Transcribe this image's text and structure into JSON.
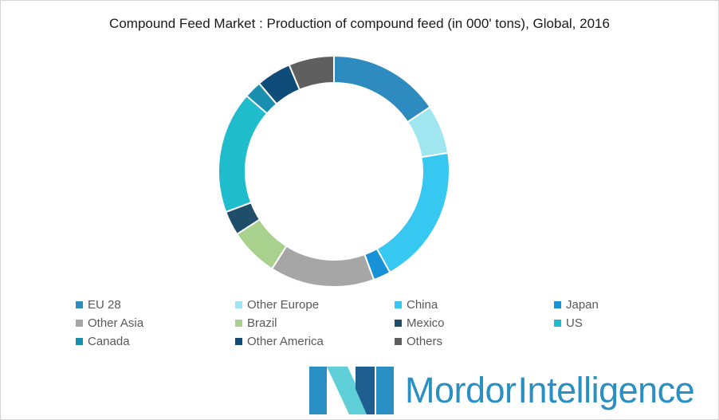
{
  "chart_data": {
    "type": "pie",
    "title": "Compound Feed Market : Production of compound feed (in 000' tons), Global, 2016",
    "donut": true,
    "legend_position": "bottom",
    "series": [
      {
        "name": "EU 28",
        "value": 16.0,
        "color": "#2e8bc0"
      },
      {
        "name": "Other Europe",
        "value": 7.0,
        "color": "#9fe6f0"
      },
      {
        "name": "China",
        "value": 20.0,
        "color": "#36c8f0"
      },
      {
        "name": "Japan",
        "value": 2.5,
        "color": "#1792d6"
      },
      {
        "name": "Other Asia",
        "value": 15.0,
        "color": "#a6a6a6"
      },
      {
        "name": "Brazil",
        "value": 7.0,
        "color": "#a9d18e"
      },
      {
        "name": "Mexico",
        "value": 3.5,
        "color": "#1f4e6b"
      },
      {
        "name": "US",
        "value": 17.5,
        "color": "#1fbdcc"
      },
      {
        "name": "Canada",
        "value": 2.5,
        "color": "#1a8fb0"
      },
      {
        "name": "Other America",
        "value": 5.0,
        "color": "#0f4c7a"
      },
      {
        "name": "Others",
        "value": 6.5,
        "color": "#5f5f5f"
      }
    ]
  },
  "logo": {
    "word1": "Mordor",
    "word2": "Intelligence",
    "colors": [
      "#2a8fc3",
      "#5fd0d8",
      "#1e5f8f"
    ]
  }
}
